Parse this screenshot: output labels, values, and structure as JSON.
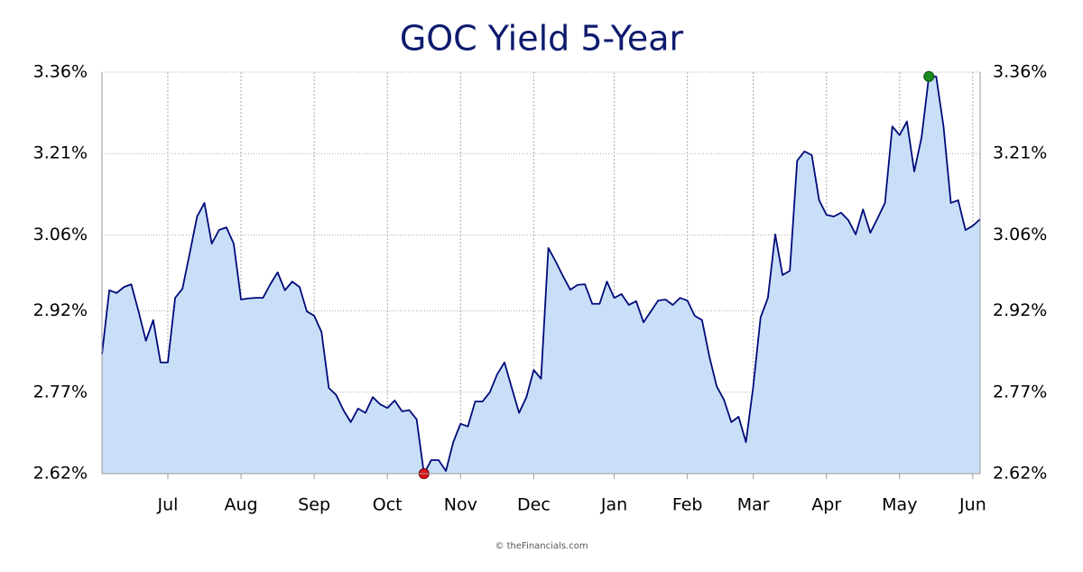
{
  "chart_data": {
    "type": "area",
    "title": "GOC Yield 5-Year",
    "source": "© theFinancials.com",
    "categories": [
      null,
      null,
      null,
      null,
      null,
      null,
      null,
      null,
      null,
      "Jul",
      null,
      null,
      null,
      null,
      null,
      null,
      null,
      null,
      null,
      "Aug",
      null,
      null,
      null,
      null,
      null,
      null,
      null,
      null,
      null,
      "Sep",
      null,
      null,
      null,
      null,
      null,
      null,
      null,
      null,
      null,
      "Oct",
      null,
      null,
      null,
      null,
      null,
      null,
      null,
      null,
      null,
      "Nov",
      null,
      null,
      null,
      null,
      null,
      null,
      null,
      null,
      null,
      "Dec",
      null,
      null,
      null,
      null,
      null,
      null,
      null,
      null,
      null,
      null,
      "Jan",
      null,
      null,
      null,
      null,
      null,
      null,
      null,
      null,
      null,
      "Feb",
      null,
      null,
      null,
      null,
      null,
      null,
      null,
      null,
      "Mar",
      null,
      null,
      null,
      null,
      null,
      null,
      null,
      null,
      null,
      "Apr",
      null,
      null,
      null,
      null,
      null,
      null,
      null,
      null,
      null,
      "May",
      null,
      null,
      null,
      null,
      null,
      null,
      null,
      null,
      null,
      "Jun",
      null
    ],
    "values": [
      2.84,
      2.958,
      2.953,
      2.964,
      2.969,
      2.919,
      2.865,
      2.903,
      2.825,
      2.825,
      2.944,
      2.961,
      3.027,
      3.094,
      3.119,
      3.044,
      3.069,
      3.074,
      3.044,
      2.941,
      2.943,
      2.944,
      2.944,
      2.969,
      2.991,
      2.958,
      2.974,
      2.964,
      2.919,
      2.911,
      2.881,
      2.778,
      2.765,
      2.737,
      2.715,
      2.74,
      2.732,
      2.761,
      2.748,
      2.741,
      2.755,
      2.735,
      2.737,
      2.72,
      2.62,
      2.645,
      2.645,
      2.625,
      2.678,
      2.712,
      2.707,
      2.753,
      2.753,
      2.77,
      2.803,
      2.825,
      2.778,
      2.732,
      2.761,
      2.811,
      2.795,
      3.036,
      3.011,
      2.984,
      2.959,
      2.968,
      2.969,
      2.933,
      2.933,
      2.974,
      2.944,
      2.951,
      2.931,
      2.938,
      2.899,
      2.919,
      2.939,
      2.941,
      2.931,
      2.944,
      2.939,
      2.911,
      2.903,
      2.836,
      2.781,
      2.756,
      2.715,
      2.725,
      2.678,
      2.781,
      2.908,
      2.944,
      3.061,
      2.986,
      2.994,
      3.197,
      3.214,
      3.207,
      3.124,
      3.097,
      3.094,
      3.101,
      3.087,
      3.061,
      3.107,
      3.064,
      3.091,
      3.119,
      3.26,
      3.244,
      3.269,
      3.177,
      3.24,
      3.352,
      3.352,
      3.26,
      3.119,
      3.124,
      3.069,
      3.077,
      3.089
    ],
    "line_color": "#000a7a",
    "fill_color": "#c9dff7",
    "low_color": "#e0161b",
    "high_color": "#168a1e",
    "ylim": [
      2.62,
      3.36
    ],
    "yticks": [
      {
        "value": 2.62,
        "label": "2.62%"
      },
      {
        "value": 2.77,
        "label": "2.77%"
      },
      {
        "value": 2.92,
        "label": "2.92%"
      },
      {
        "value": 3.06,
        "label": "3.06%"
      },
      {
        "value": 3.21,
        "label": "3.21%"
      },
      {
        "value": 3.36,
        "label": "3.36%"
      }
    ],
    "grid": true
  }
}
